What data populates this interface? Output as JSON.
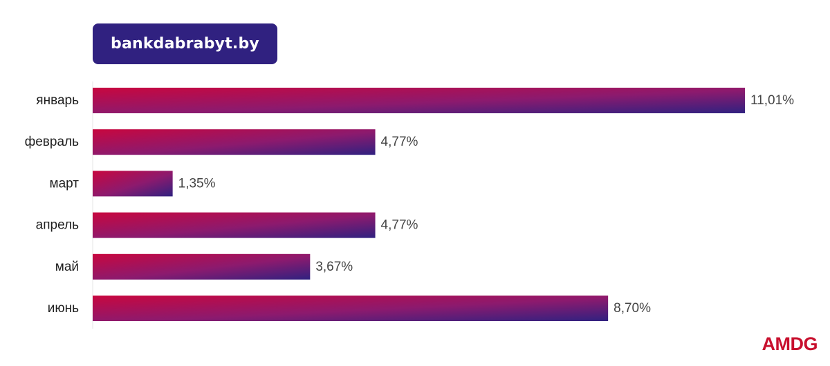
{
  "brand": {
    "site": "bankdabrabyt.by",
    "logo": "AMDG"
  },
  "colors": {
    "badge": "#302180",
    "bar_start": "#c8073f",
    "bar_end": "#302180",
    "logo": "#c8102e"
  },
  "chart_data": {
    "type": "bar",
    "orientation": "horizontal",
    "categories": [
      "январь",
      "февраль",
      "март",
      "апрель",
      "май",
      "июнь"
    ],
    "values": [
      11.01,
      4.77,
      1.35,
      4.77,
      3.67,
      8.7
    ],
    "value_labels": [
      "11,01%",
      "4,77%",
      "1,35%",
      "4,77%",
      "3,67%",
      "8,70%"
    ],
    "xlim": [
      0,
      11.01
    ],
    "grid": false,
    "legend": "none"
  }
}
